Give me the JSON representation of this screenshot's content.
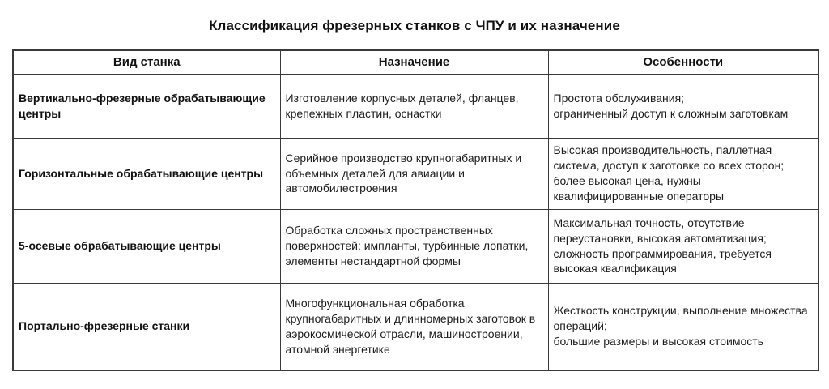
{
  "title": "Классификация фрезерных станков с ЧПУ и их назначение",
  "table": {
    "columns": [
      "Вид станка",
      "Назначение",
      "Особенности"
    ],
    "rows": [
      {
        "type": "Вертикально-фрезерные обрабатывающие центры",
        "purpose": "Изготовление корпусных деталей, фланцев, крепежных пластин, оснастки",
        "features": "Простота обслуживания;\nограниченный доступ к сложным заготовкам"
      },
      {
        "type": "Горизонтальные обрабатывающие центры",
        "purpose": "Серийное производство крупногабаритных и объемных деталей для авиации и автомобилестроения",
        "features": "Высокая производительность, паллетная система, доступ к заготовке со всех сторон; более высокая цена, нужны квалифицированные операторы"
      },
      {
        "type": "5-осевые обрабатывающие центры",
        "purpose": "Обработка сложных пространственных поверхностей: импланты, турбинные лопатки, элементы нестандартной формы",
        "features": "Максимальная точность, отсутствие переустановки, высокая автоматизация; сложность программирования, требуется высокая квалификация"
      },
      {
        "type": "Портально-фрезерные станки",
        "purpose": "Многофункциональная обработка крупногабаритных и длинномерных заготовок в аэрокосмической отрасли, машиностроении, атомной энергетике",
        "features": "Жесткость конструкции, выполнение множества операций;\nбольшие размеры и высокая стоимость"
      }
    ]
  }
}
